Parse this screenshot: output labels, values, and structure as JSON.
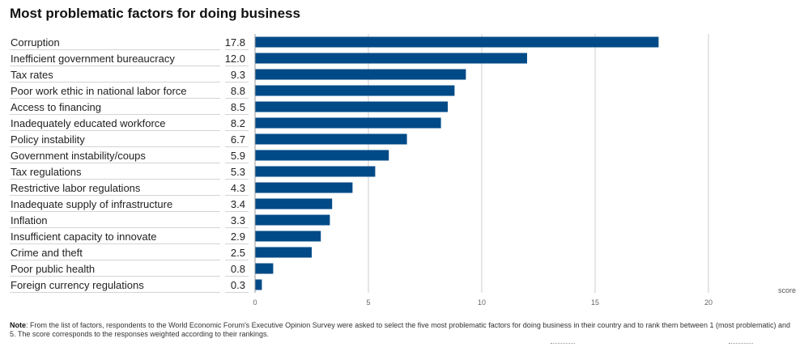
{
  "title": "Most problematic factors for doing business",
  "note": {
    "label": "Note",
    "text": ": From the list of factors, respondents to the World Economic Forum's Executive Opinion Survey were asked to select the five most problematic factors for doing business in their country and to rank them between 1 (most problematic) and 5. The score corresponds to the responses weighted according to their rankings."
  },
  "colors": {
    "bar": "#004a87",
    "grid": "#cccccc",
    "row_line": "#d4d4d4"
  },
  "chart_data": {
    "type": "bar",
    "orientation": "horizontal",
    "categories": [
      "Corruption",
      "Inefficient government bureaucracy",
      "Tax rates",
      "Poor work ethic in national labor force",
      "Access to financing",
      "Inadequately educated workforce",
      "Policy instability",
      "Government instability/coups",
      "Tax regulations",
      "Restrictive labor regulations",
      "Inadequate supply of infrastructure",
      "Inflation",
      "Insufficient capacity to innovate",
      "Crime and theft",
      "Poor public health",
      "Foreign currency regulations"
    ],
    "values": [
      17.8,
      12.0,
      9.3,
      8.8,
      8.5,
      8.2,
      6.7,
      5.9,
      5.3,
      4.3,
      3.4,
      3.3,
      2.9,
      2.5,
      0.8,
      0.3
    ],
    "value_labels": [
      "17.8",
      "12.0",
      "9.3",
      "8.8",
      "8.5",
      "8.2",
      "6.7",
      "5.9",
      "5.3",
      "4.3",
      "3.4",
      "3.3",
      "2.9",
      "2.5",
      "0.8",
      "0.3"
    ],
    "xlabel": "score",
    "xlim": [
      0,
      20
    ],
    "xticks": [
      0,
      5,
      10,
      15,
      20
    ],
    "grid": true
  }
}
